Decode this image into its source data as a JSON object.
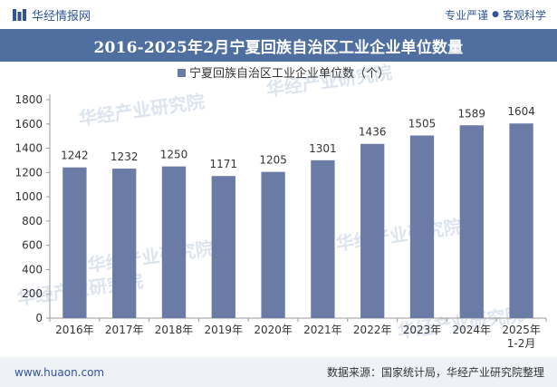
{
  "header": {
    "brand": "华经情报网",
    "slogan_left": "专业严谨",
    "slogan_dot": "●",
    "slogan_right": "客观科学"
  },
  "title": "2016-2025年2月宁夏回族自治区工业企业单位数量",
  "watermark": "华经产业研究院",
  "footer": {
    "site": "www.huaon.com",
    "source": "数据来源：国家统计局，华经产业研究院整理"
  },
  "colors": {
    "brand": "#2f5597",
    "title_bar": "#4f6fa0",
    "bar": "#6a7ca6"
  },
  "icons": {
    "brand_logo": "huajing-logo-icon",
    "legend_marker": "square-marker-icon"
  },
  "chart_data": {
    "type": "bar",
    "title": "2016-2025年2月宁夏回族自治区工业企业单位数量",
    "categories": [
      "2016年",
      "2017年",
      "2018年",
      "2019年",
      "2020年",
      "2021年",
      "2022年",
      "2023年",
      "2024年",
      "2025年\n1-2月"
    ],
    "series": [
      {
        "name": "宁夏回族自治区工业企业单位数（个）",
        "values": [
          1242,
          1232,
          1250,
          1171,
          1205,
          1301,
          1436,
          1505,
          1589,
          1604
        ]
      }
    ],
    "ylim": [
      0,
      1800
    ],
    "yticks": [
      0,
      200,
      400,
      600,
      800,
      1000,
      1200,
      1400,
      1600,
      1800
    ],
    "xlabel": "",
    "ylabel": "",
    "legend_position": "top-center",
    "grid": false,
    "data_labels": true
  }
}
